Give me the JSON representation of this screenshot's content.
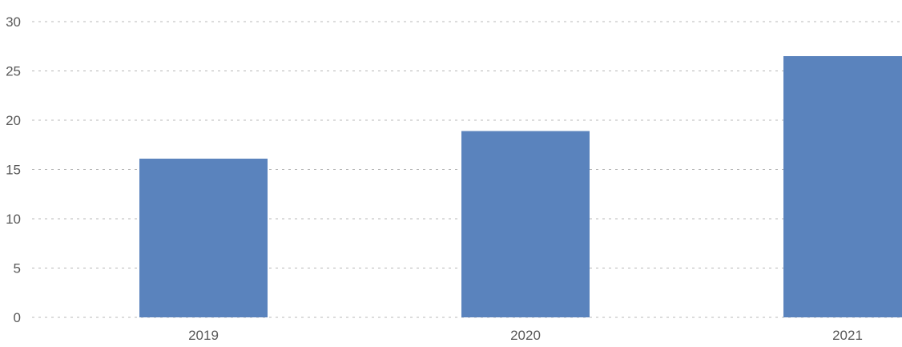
{
  "chart_data": {
    "type": "bar",
    "categories": [
      "2019",
      "2020",
      "2021"
    ],
    "values": [
      16.1,
      18.9,
      26.5
    ],
    "ylim": [
      0,
      30
    ],
    "yticks": [
      0,
      5,
      10,
      15,
      20,
      25,
      30
    ],
    "grid": true,
    "legend": "none",
    "title": "",
    "xlabel": "",
    "ylabel": "",
    "colors": {
      "bar": "#5a83bd",
      "grid": "#b8b8b8",
      "tick_text": "#595959"
    }
  }
}
